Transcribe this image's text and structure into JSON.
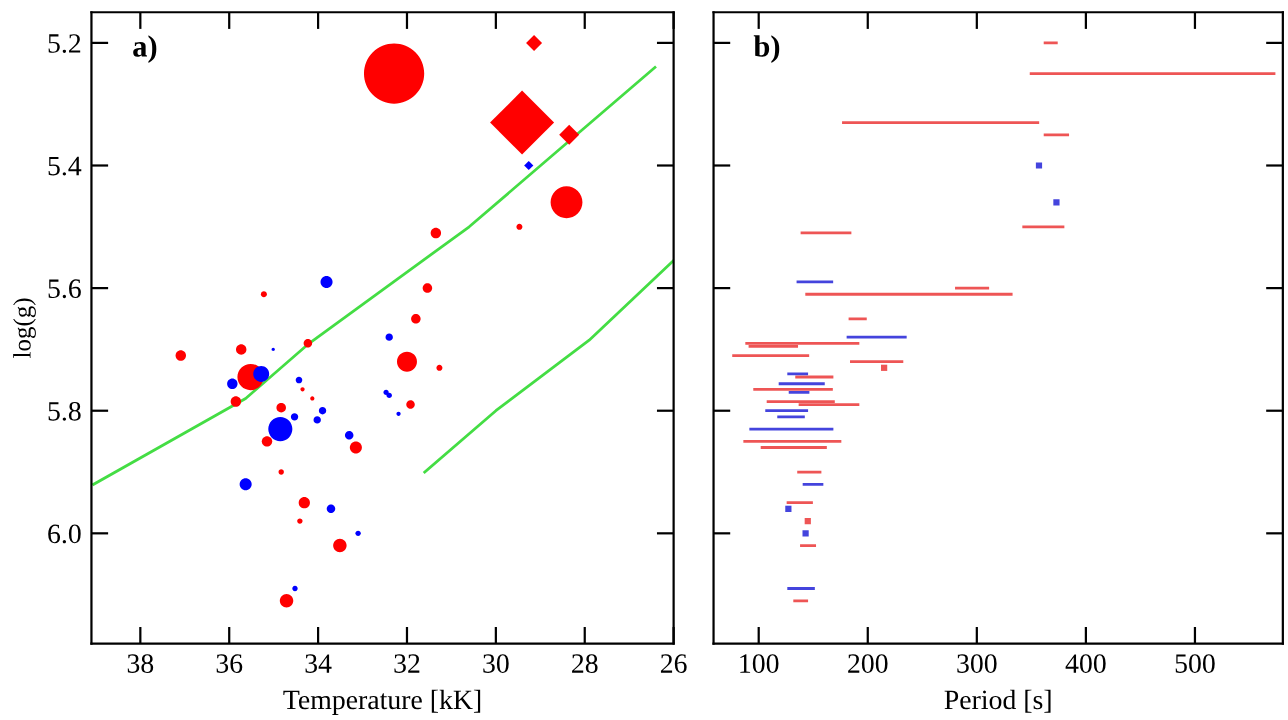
{
  "chart_data": [
    {
      "type": "bubble",
      "xlabel": "Temperature [kK]",
      "ylabel": "log(g)",
      "annotations": [
        "a)"
      ],
      "xlim": [
        39.1,
        26
      ],
      "xticks": [
        38,
        36,
        34,
        32,
        30,
        28,
        26
      ],
      "ylim": [
        6.18,
        5.15
      ],
      "yticks": [
        {
          "value": 5.2,
          "label": "5.2"
        },
        {
          "value": 5.4,
          "label": "5.4"
        },
        {
          "value": 5.6,
          "label": "5.6"
        },
        {
          "value": 5.8,
          "label": "5.8"
        },
        {
          "value": 6,
          "label": "6.0"
        }
      ],
      "grid": false,
      "legend": false,
      "series": [
        {
          "type": "line",
          "color": "#44dd44",
          "marker": "none",
          "line_style": "solid",
          "x": [
            39.05,
            35.63,
            34.2,
            30.6,
            26.42
          ],
          "values": [
            5.92,
            5.78,
            5.69,
            5.5,
            5.24
          ]
        },
        {
          "type": "line",
          "color": "#44dd44",
          "marker": "none",
          "line_style": "solid",
          "x": [
            31.6,
            30.0,
            27.9,
            26.0
          ],
          "values": [
            5.9,
            5.8,
            5.685,
            5.555
          ]
        },
        {
          "color": "#ff0000",
          "marker": "circle",
          "x": [
            32.29,
            28.41,
            31.35,
            29.47,
            35.22,
            31.54,
            31.8,
            37.09,
            35.73,
            34.23,
            35.52,
            35.85,
            32.0,
            31.27,
            34.35,
            34.13,
            31.92,
            34.83,
            35.15,
            33.15,
            34.83,
            34.31,
            34.41,
            33.51,
            34.71
          ],
          "values": [
            5.25,
            5.46,
            5.51,
            5.5,
            5.61,
            5.6,
            5.65,
            5.71,
            5.7,
            5.69,
            5.745,
            5.785,
            5.72,
            5.73,
            5.765,
            5.78,
            5.79,
            5.795,
            5.85,
            5.86,
            5.9,
            5.95,
            5.98,
            6.02,
            6.11
          ],
          "sizes": [
            1.0,
            0.28,
            0.03,
            0.01,
            0.01,
            0.025,
            0.025,
            0.03,
            0.03,
            0.02,
            0.19,
            0.03,
            0.11,
            0.01,
            0.005,
            0.005,
            0.02,
            0.025,
            0.03,
            0.04,
            0.008,
            0.035,
            0.008,
            0.05,
            0.05
          ]
        },
        {
          "color": "#0000ff",
          "marker": "circle",
          "x": [
            33.81,
            32.4,
            35.01,
            35.28,
            35.93,
            34.43,
            32.47,
            32.4,
            32.19,
            33.9,
            34.53,
            34.02,
            34.85,
            33.3,
            35.63,
            33.71,
            33.1,
            34.52
          ],
          "values": [
            5.59,
            5.68,
            5.7,
            5.74,
            5.756,
            5.75,
            5.77,
            5.775,
            5.805,
            5.8,
            5.81,
            5.815,
            5.83,
            5.84,
            5.92,
            5.96,
            6.0,
            6.09
          ],
          "sizes": [
            0.04,
            0.015,
            0.003,
            0.07,
            0.03,
            0.012,
            0.008,
            0.008,
            0.005,
            0.015,
            0.015,
            0.015,
            0.16,
            0.02,
            0.04,
            0.02,
            0.008,
            0.008
          ]
        },
        {
          "color": "#ff0000",
          "marker": "diamond",
          "x": [
            29.14,
            29.41,
            28.35
          ],
          "values": [
            5.2,
            5.33,
            5.35
          ],
          "sizes": [
            0.045,
            0.72,
            0.07
          ]
        },
        {
          "color": "#0000ff",
          "marker": "diamond",
          "x": [
            29.26
          ],
          "values": [
            5.4
          ],
          "sizes": [
            0.015
          ]
        }
      ]
    },
    {
      "type": "line",
      "xlabel": "Period [s]",
      "annotations": [
        "b)"
      ],
      "xlim": [
        58.6,
        580.6
      ],
      "xticks": [
        100,
        200,
        300,
        400,
        500
      ],
      "ylim": [
        6.18,
        5.15
      ],
      "yticks": [
        {
          "value": 5.2,
          "label": null
        },
        {
          "value": 5.4,
          "label": null
        },
        {
          "value": 5.6,
          "label": null
        },
        {
          "value": 5.8,
          "label": null
        },
        {
          "value": 6,
          "label": null
        }
      ],
      "tick_labels": "x",
      "grid": false,
      "legend": false,
      "marker": "none",
      "line_style": "solid",
      "series": [
        {
          "color": "#ee5555",
          "x": [
            362.6,
            372.9,
            null,
            349.8,
            572.5,
            null,
            177.7,
            355.9,
            null,
            362.6,
            383.3,
            null,
            139.7,
            183.7,
            null,
            343,
            379,
            null,
            281.3,
            310,
            null,
            144,
            331.5,
            null,
            183.7,
            197.8,
            null,
            89,
            191,
            null,
            92,
            134.8,
            null,
            77,
            145,
            null,
            185,
            231.3,
            null,
            134.8,
            167.2,
            null,
            96.3,
            166.7,
            null,
            108.6,
            168.5,
            null,
            137.9,
            191,
            null,
            87.2,
            174.5,
            null,
            103.1,
            161.2,
            null,
            136.6,
            156.2,
            null,
            126.9,
            148.4,
            null,
            139.2,
            151.3,
            null,
            133,
            144
          ],
          "values": [
            5.2,
            5.2,
            null,
            5.25,
            5.25,
            null,
            5.33,
            5.33,
            null,
            5.35,
            5.35,
            null,
            5.51,
            5.51,
            null,
            5.5,
            5.5,
            null,
            5.6,
            5.6,
            null,
            5.61,
            5.61,
            null,
            5.65,
            5.65,
            null,
            5.69,
            5.69,
            null,
            5.695,
            5.695,
            null,
            5.71,
            5.71,
            null,
            5.72,
            5.72,
            null,
            5.745,
            5.745,
            null,
            5.765,
            5.765,
            null,
            5.785,
            5.785,
            null,
            5.79,
            5.79,
            null,
            5.85,
            5.85,
            null,
            5.86,
            5.86,
            null,
            5.9,
            5.9,
            null,
            5.95,
            5.95,
            null,
            6.02,
            6.02,
            null,
            6.11,
            6.11
          ]
        },
        {
          "color": "#4444dd",
          "x": [
            136,
            167,
            null,
            181.9,
            234.4,
            null,
            127.5,
            144,
            null,
            119.6,
            159.3,
            null,
            128.8,
            145.2,
            null,
            107.3,
            144,
            null,
            118.3,
            141,
            null,
            92.7,
            167.2,
            null,
            141.6,
            158,
            null,
            127.5,
            150.2
          ],
          "values": [
            5.59,
            5.59,
            null,
            5.68,
            5.68,
            null,
            5.74,
            5.74,
            null,
            5.756,
            5.756,
            null,
            5.77,
            5.77,
            null,
            5.8,
            5.8,
            null,
            5.81,
            5.81,
            null,
            5.83,
            5.83,
            null,
            5.92,
            5.92,
            null,
            6.09,
            6.09
          ]
        },
        {
          "type": "scatter",
          "color": "#ee5555",
          "marker": "square",
          "x": [
            215,
            145
          ],
          "values": [
            5.73,
            5.98
          ]
        },
        {
          "type": "scatter",
          "color": "#4444dd",
          "marker": "square",
          "x": [
            357,
            373,
            127.2,
            143
          ],
          "values": [
            5.4,
            5.46,
            5.96,
            6.0
          ]
        }
      ]
    }
  ]
}
